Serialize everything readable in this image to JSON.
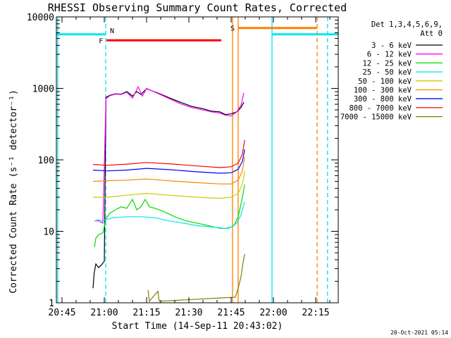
{
  "chart_data": {
    "type": "line",
    "title": "RHESSI Observing Summary Count Rates, Corrected",
    "xlabel": "Start Time (14-Sep-11 20:43:02)",
    "ylabel": "Corrected Count Rate (s⁻¹ detector⁻¹)",
    "x_unit": "minutes after 20:43:02",
    "xlim": [
      0,
      100
    ],
    "ylim": [
      1,
      10000
    ],
    "yscale": "log",
    "x_ticks": [
      {
        "label": "20:45",
        "t": 2
      },
      {
        "label": "21:00",
        "t": 17
      },
      {
        "label": "21:15",
        "t": 32
      },
      {
        "label": "21:30",
        "t": 47
      },
      {
        "label": "21:45",
        "t": 62
      },
      {
        "label": "22:00",
        "t": 77
      },
      {
        "label": "22:15",
        "t": 92
      }
    ],
    "y_ticks": [
      {
        "label": "1",
        "v": 1
      },
      {
        "label": "10",
        "v": 10
      },
      {
        "label": "100",
        "v": 100
      },
      {
        "label": "1000",
        "v": 1000
      },
      {
        "label": "10000",
        "v": 10000
      }
    ],
    "legend": {
      "header": [
        "Det 1,3,4,5,6,9,",
        "Att 0"
      ],
      "placement": "right"
    },
    "series": [
      {
        "name": "3 - 6 keV",
        "color": "#000000",
        "points": [
          [
            13,
            1.6
          ],
          [
            13.4,
            2.6
          ],
          [
            14,
            3.5
          ],
          [
            15,
            3.1
          ],
          [
            16,
            3.4
          ],
          [
            17,
            3.8
          ],
          [
            17.6,
            750
          ],
          [
            19,
            800
          ],
          [
            21,
            840
          ],
          [
            23,
            830
          ],
          [
            25,
            900
          ],
          [
            27,
            780
          ],
          [
            28.5,
            900
          ],
          [
            30,
            820
          ],
          [
            32,
            990
          ],
          [
            34,
            920
          ],
          [
            36,
            860
          ],
          [
            40,
            740
          ],
          [
            44,
            640
          ],
          [
            48,
            560
          ],
          [
            52,
            520
          ],
          [
            55,
            480
          ],
          [
            58,
            470
          ],
          [
            60,
            430
          ],
          [
            62,
            440
          ],
          [
            64,
            470
          ],
          [
            65.5,
            540
          ],
          [
            66.5,
            640
          ]
        ]
      },
      {
        "name": "6 - 12 keV",
        "color": "#ff00ff",
        "points": [
          [
            13.5,
            14
          ],
          [
            15,
            14
          ],
          [
            16.5,
            13
          ],
          [
            17.6,
            720
          ],
          [
            19,
            790
          ],
          [
            21,
            830
          ],
          [
            23,
            820
          ],
          [
            25,
            880
          ],
          [
            27,
            730
          ],
          [
            29,
            1050
          ],
          [
            30.5,
            780
          ],
          [
            32,
            1000
          ],
          [
            34,
            920
          ],
          [
            36,
            850
          ],
          [
            40,
            720
          ],
          [
            44,
            610
          ],
          [
            48,
            540
          ],
          [
            52,
            500
          ],
          [
            55,
            470
          ],
          [
            58,
            450
          ],
          [
            60,
            420
          ],
          [
            62,
            410
          ],
          [
            64,
            470
          ],
          [
            65.5,
            580
          ],
          [
            66.5,
            860
          ]
        ]
      },
      {
        "name": "12 - 25 keV",
        "color": "#00dd00",
        "points": [
          [
            13.5,
            6
          ],
          [
            14,
            8
          ],
          [
            15,
            9
          ],
          [
            16.5,
            9.5
          ],
          [
            17.6,
            15
          ],
          [
            19,
            18
          ],
          [
            21,
            20
          ],
          [
            23,
            22
          ],
          [
            25,
            21
          ],
          [
            27,
            28
          ],
          [
            28.5,
            20
          ],
          [
            30,
            22
          ],
          [
            31.5,
            28
          ],
          [
            33,
            22
          ],
          [
            35,
            21
          ],
          [
            38,
            19
          ],
          [
            42,
            16
          ],
          [
            46,
            14
          ],
          [
            50,
            13
          ],
          [
            54,
            12
          ],
          [
            58,
            11
          ],
          [
            61,
            11
          ],
          [
            63,
            12
          ],
          [
            64.5,
            16
          ],
          [
            66,
            30
          ],
          [
            66.8,
            45
          ]
        ]
      },
      {
        "name": "25 - 50 keV",
        "color": "#00e5ee",
        "points": [
          [
            13.5,
            14
          ],
          [
            15,
            14.5
          ],
          [
            16.5,
            14
          ],
          [
            17.6,
            14.5
          ],
          [
            20,
            15.5
          ],
          [
            25,
            16
          ],
          [
            30,
            16
          ],
          [
            35,
            15.5
          ],
          [
            40,
            14
          ],
          [
            45,
            13
          ],
          [
            50,
            12
          ],
          [
            55,
            11.5
          ],
          [
            60,
            11
          ],
          [
            62,
            11.5
          ],
          [
            64,
            13
          ],
          [
            65.5,
            17
          ],
          [
            66.8,
            26
          ]
        ]
      },
      {
        "name": "50 - 100 keV",
        "color": "#cccc00",
        "points": [
          [
            13,
            30
          ],
          [
            18,
            30
          ],
          [
            25,
            32
          ],
          [
            32,
            34
          ],
          [
            40,
            32
          ],
          [
            50,
            30
          ],
          [
            58,
            29
          ],
          [
            62,
            30
          ],
          [
            64.5,
            34
          ],
          [
            66,
            46
          ],
          [
            66.8,
            70
          ]
        ]
      },
      {
        "name": "100 - 300 keV",
        "color": "#ff8000",
        "points": [
          [
            13,
            50
          ],
          [
            18,
            51
          ],
          [
            25,
            52
          ],
          [
            32,
            54
          ],
          [
            40,
            51
          ],
          [
            50,
            48
          ],
          [
            58,
            46
          ],
          [
            62,
            46
          ],
          [
            64.5,
            52
          ],
          [
            66,
            70
          ],
          [
            66.8,
            110
          ]
        ]
      },
      {
        "name": "300 - 800 keV",
        "color": "#0000ff",
        "points": [
          [
            13,
            72
          ],
          [
            18,
            70
          ],
          [
            25,
            72
          ],
          [
            32,
            76
          ],
          [
            40,
            73
          ],
          [
            50,
            68
          ],
          [
            58,
            65
          ],
          [
            62,
            66
          ],
          [
            64.5,
            74
          ],
          [
            66,
            95
          ],
          [
            66.8,
            140
          ]
        ]
      },
      {
        "name": "800 - 7000 keV",
        "color": "#ff0000",
        "points": [
          [
            13,
            86
          ],
          [
            18,
            84
          ],
          [
            25,
            87
          ],
          [
            32,
            92
          ],
          [
            40,
            88
          ],
          [
            50,
            82
          ],
          [
            58,
            78
          ],
          [
            62,
            80
          ],
          [
            64.5,
            90
          ],
          [
            66,
            120
          ],
          [
            66.8,
            190
          ]
        ]
      },
      {
        "name": "7000 - 15000 keV",
        "color": "#808000",
        "points": [
          [
            32.5,
            1.5
          ],
          [
            33,
            1.05
          ],
          [
            36,
            1.45
          ],
          [
            36.5,
            1.05
          ],
          [
            63.5,
            1.2
          ],
          [
            64.5,
            1.6
          ],
          [
            65.5,
            2.3
          ],
          [
            66.2,
            3.6
          ],
          [
            66.8,
            4.8
          ]
        ]
      }
    ],
    "state_bars": [
      {
        "label": "",
        "color": "#00e5ee",
        "intervals": [
          [
            0,
            17.5
          ],
          [
            76.5,
            100
          ]
        ],
        "level": 5700
      },
      {
        "label": "F",
        "color": "#ff0000",
        "intervals": [
          [
            17.8,
            58.5
          ]
        ],
        "level": 4700
      },
      {
        "label": "S",
        "color": "#ff8000",
        "intervals": [
          [
            64.5,
            92.5
          ]
        ],
        "level": 7000
      }
    ],
    "marker_lines": [
      {
        "t": 0.5,
        "color": "#00e5ee",
        "style": "solid"
      },
      {
        "t": 17.5,
        "color": "#00e5ee",
        "style": "dashed",
        "label": "N"
      },
      {
        "t": 62.5,
        "color": "#ff8000",
        "style": "solid"
      },
      {
        "t": 64.5,
        "color": "#ff8000",
        "style": "solid"
      },
      {
        "t": 76.5,
        "color": "#00e5ee",
        "style": "solid"
      },
      {
        "t": 92.5,
        "color": "#ff8000",
        "style": "dashed"
      },
      {
        "t": 96.2,
        "color": "#00e5ee",
        "style": "dashed"
      }
    ]
  },
  "footer": {
    "timestamp": "20-Oct-2021 05:14"
  }
}
